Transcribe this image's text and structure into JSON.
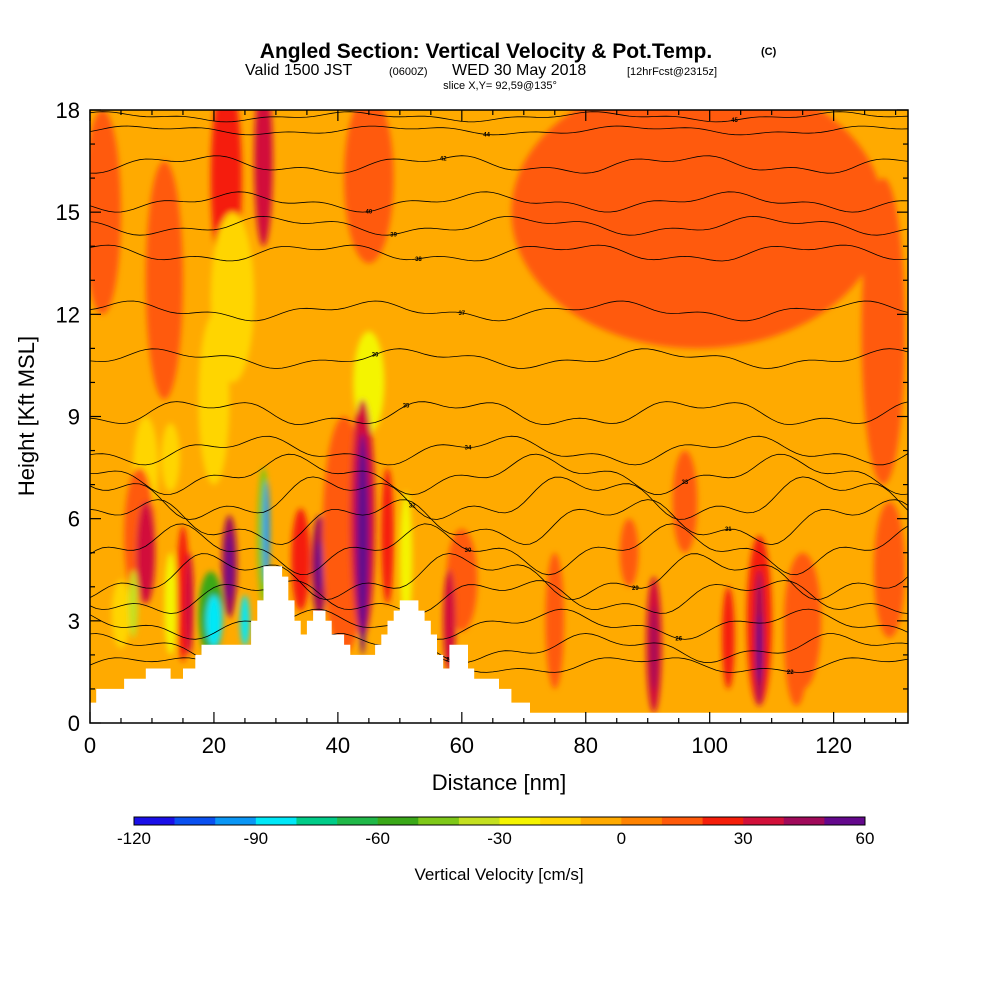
{
  "title": {
    "main": "Angled Section: Vertical Velocity & Pot.Temp.",
    "main_suffix": "(C)",
    "valid_prefix": "Valid 1500 JST",
    "valid_utc": "(0600Z)",
    "valid_date": "WED 30 May 2018",
    "forecast": "[12hrFcst@2315z]",
    "slice": "slice X,Y= 92,59@135°"
  },
  "chart_data": {
    "type": "heatmap",
    "xlabel": "Distance [nm]",
    "ylabel": "Height [Kft MSL]",
    "xlim": [
      0,
      132
    ],
    "ylim": [
      0,
      18
    ],
    "xticks": [
      0,
      20,
      40,
      60,
      80,
      100,
      120
    ],
    "yticks": [
      0,
      3,
      6,
      9,
      12,
      15,
      18
    ],
    "colorbar": {
      "title": "Vertical Velocity [cm/s]",
      "range": [
        -120,
        60
      ],
      "step": 10,
      "tick_values": [
        -120,
        -90,
        -60,
        -30,
        0,
        30,
        60
      ],
      "colors": [
        "#1a0fe8",
        "#0a50f0",
        "#0a96f5",
        "#00e8f8",
        "#00cc88",
        "#20b848",
        "#3aa818",
        "#7ec818",
        "#c4e020",
        "#f4f400",
        "#ffd500",
        "#ffaa00",
        "#ff8300",
        "#ff5a0a",
        "#f51e0a",
        "#d2103a",
        "#a00a5a",
        "#64088c"
      ]
    },
    "background_color": "#ffaa00",
    "terrain": [
      [
        0,
        0.6
      ],
      [
        1,
        0.6
      ],
      [
        1,
        1
      ],
      [
        5.5,
        1
      ],
      [
        5.5,
        1.3
      ],
      [
        9,
        1.3
      ],
      [
        9,
        1.6
      ],
      [
        13,
        1.6
      ],
      [
        13,
        1.3
      ],
      [
        15,
        1.3
      ],
      [
        15,
        1.6
      ],
      [
        17,
        1.6
      ],
      [
        17,
        2
      ],
      [
        18,
        2
      ],
      [
        18,
        2.3
      ],
      [
        26,
        2.3
      ],
      [
        26,
        3
      ],
      [
        27,
        3
      ],
      [
        27,
        3.6
      ],
      [
        28,
        3.6
      ],
      [
        28,
        4.6
      ],
      [
        31,
        4.6
      ],
      [
        31,
        4.3
      ],
      [
        32,
        4.3
      ],
      [
        32,
        3.6
      ],
      [
        33,
        3.6
      ],
      [
        33,
        3
      ],
      [
        34,
        3
      ],
      [
        34,
        2.6
      ],
      [
        35,
        2.6
      ],
      [
        35,
        3
      ],
      [
        36,
        3
      ],
      [
        36,
        3.3
      ],
      [
        38,
        3.3
      ],
      [
        38,
        3
      ],
      [
        39,
        3
      ],
      [
        39,
        2.6
      ],
      [
        41,
        2.6
      ],
      [
        41,
        2.3
      ],
      [
        42,
        2.3
      ],
      [
        42,
        2
      ],
      [
        46,
        2
      ],
      [
        46,
        2.3
      ],
      [
        47,
        2.3
      ],
      [
        47,
        2.6
      ],
      [
        48,
        2.6
      ],
      [
        48,
        3
      ],
      [
        49,
        3
      ],
      [
        49,
        3.3
      ],
      [
        50,
        3.3
      ],
      [
        50,
        3.6
      ],
      [
        53,
        3.6
      ],
      [
        53,
        3.3
      ],
      [
        54,
        3.3
      ],
      [
        54,
        3
      ],
      [
        55,
        3
      ],
      [
        55,
        2.6
      ],
      [
        56,
        2.6
      ],
      [
        56,
        2
      ],
      [
        57,
        2
      ],
      [
        57,
        1.6
      ],
      [
        58,
        1.6
      ],
      [
        58,
        2.3
      ],
      [
        61,
        2.3
      ],
      [
        61,
        1.6
      ],
      [
        62,
        1.6
      ],
      [
        62,
        1.3
      ],
      [
        66,
        1.3
      ],
      [
        66,
        1
      ],
      [
        68,
        1
      ],
      [
        68,
        0.6
      ],
      [
        71,
        0.6
      ],
      [
        71,
        0.3
      ],
      [
        132,
        0.3
      ]
    ],
    "cells": [
      {
        "x": 2,
        "y": 15,
        "w": 6,
        "h": 6,
        "v": 10
      },
      {
        "x": 12,
        "y": 13,
        "w": 6,
        "h": 7,
        "v": 10
      },
      {
        "x": 22,
        "y": 16,
        "w": 5,
        "h": 6,
        "v": 20
      },
      {
        "x": 28,
        "y": 16.5,
        "w": 3,
        "h": 5,
        "v": 30
      },
      {
        "x": 45,
        "y": 16,
        "w": 8,
        "h": 5,
        "v": 10
      },
      {
        "x": 98,
        "y": 15,
        "w": 60,
        "h": 8,
        "v": 10
      },
      {
        "x": 105,
        "y": 14,
        "w": 7,
        "h": 5,
        "v": 10
      },
      {
        "x": 128,
        "y": 11.5,
        "w": 7,
        "h": 9,
        "v": 10
      },
      {
        "x": 23,
        "y": 12.5,
        "w": 7,
        "h": 5,
        "v": -20
      },
      {
        "x": 20,
        "y": 9.5,
        "w": 5,
        "h": 5,
        "v": -20
      },
      {
        "x": 45,
        "y": 10,
        "w": 5,
        "h": 3,
        "v": -30
      },
      {
        "x": 9,
        "y": 7.5,
        "w": 4,
        "h": 3,
        "v": -20
      },
      {
        "x": 13,
        "y": 7.8,
        "w": 3,
        "h": 2,
        "v": -20
      },
      {
        "x": 8,
        "y": 5.5,
        "w": 5,
        "h": 4,
        "v": 10
      },
      {
        "x": 9,
        "y": 5,
        "w": 3,
        "h": 3,
        "v": 30
      },
      {
        "x": 5,
        "y": 3.2,
        "w": 3,
        "h": 2,
        "v": -20
      },
      {
        "x": 7,
        "y": 3.5,
        "w": 1.5,
        "h": 2,
        "v": -40
      },
      {
        "x": 13,
        "y": 3.5,
        "w": 2,
        "h": 3,
        "v": -30
      },
      {
        "x": 15,
        "y": 3.8,
        "w": 2,
        "h": 4,
        "v": 20
      },
      {
        "x": 16,
        "y": 3.5,
        "w": 1.5,
        "h": 3,
        "v": 30
      },
      {
        "x": 19.5,
        "y": 3.2,
        "w": 4,
        "h": 2.5,
        "v": -60
      },
      {
        "x": 20,
        "y": 3,
        "w": 2.5,
        "h": 1.5,
        "v": -90
      },
      {
        "x": 22.5,
        "y": 4.6,
        "w": 2.5,
        "h": 3,
        "v": 40
      },
      {
        "x": 22.5,
        "y": 4.6,
        "w": 1,
        "h": 2,
        "v": 60
      },
      {
        "x": 25,
        "y": 3,
        "w": 1.5,
        "h": 1.5,
        "v": -90
      },
      {
        "x": 28,
        "y": 5.5,
        "w": 2,
        "h": 4,
        "v": -50
      },
      {
        "x": 28.5,
        "y": 5.6,
        "w": 1,
        "h": 3,
        "v": -100
      },
      {
        "x": 34,
        "y": 4.8,
        "w": 3,
        "h": 3,
        "v": 20
      },
      {
        "x": 37,
        "y": 4.6,
        "w": 2.5,
        "h": 3,
        "v": 40
      },
      {
        "x": 37,
        "y": 4.6,
        "w": 1,
        "h": 1.5,
        "v": 60
      },
      {
        "x": 41,
        "y": 5.5,
        "w": 7,
        "h": 7,
        "v": 10
      },
      {
        "x": 44,
        "y": 6,
        "w": 4,
        "h": 7,
        "v": 30
      },
      {
        "x": 44,
        "y": 5.5,
        "w": 2,
        "h": 6,
        "v": 50
      },
      {
        "x": 44,
        "y": 3.5,
        "w": 1,
        "h": 3,
        "v": 60
      },
      {
        "x": 48,
        "y": 5.5,
        "w": 2,
        "h": 4,
        "v": 20
      },
      {
        "x": 51,
        "y": 4.8,
        "w": 2,
        "h": 4,
        "v": -30
      },
      {
        "x": 60,
        "y": 4.2,
        "w": 5,
        "h": 3,
        "v": 10
      },
      {
        "x": 58,
        "y": 3,
        "w": 2,
        "h": 3,
        "v": 30
      },
      {
        "x": 75,
        "y": 3,
        "w": 3,
        "h": 4,
        "v": 10
      },
      {
        "x": 87,
        "y": 5,
        "w": 3,
        "h": 2,
        "v": 10
      },
      {
        "x": 91,
        "y": 2.3,
        "w": 2.5,
        "h": 4,
        "v": 30
      },
      {
        "x": 91,
        "y": 2.2,
        "w": 1,
        "h": 2.5,
        "v": 40
      },
      {
        "x": 96,
        "y": 6.5,
        "w": 4,
        "h": 3,
        "v": 10
      },
      {
        "x": 103,
        "y": 2.5,
        "w": 2,
        "h": 3,
        "v": 20
      },
      {
        "x": 108,
        "y": 3,
        "w": 4,
        "h": 5,
        "v": 20
      },
      {
        "x": 108,
        "y": 2.5,
        "w": 1.5,
        "h": 4,
        "v": 40
      },
      {
        "x": 108,
        "y": 2.2,
        "w": 0.8,
        "h": 2,
        "v": 60
      },
      {
        "x": 115,
        "y": 3,
        "w": 6,
        "h": 4,
        "v": 10
      },
      {
        "x": 114,
        "y": 2.5,
        "w": 4,
        "h": 4,
        "v": 10
      },
      {
        "x": 129,
        "y": 4.5,
        "w": 5,
        "h": 4,
        "v": 10
      }
    ],
    "theta_levels": [
      {
        "value": 22,
        "base": 1.7,
        "amp": 0.2,
        "label_x": 113
      },
      {
        "value": 24,
        "base": 2.2,
        "amp": 0.3,
        "label_x": 58
      },
      {
        "value": 26,
        "base": 2.9,
        "amp": 0.3,
        "label_x": 95
      },
      {
        "value": 28,
        "base": 3.7,
        "amp": 0.4,
        "label_x": 53
      },
      {
        "value": 29,
        "base": 4.3,
        "amp": 0.5,
        "label_x": 88
      },
      {
        "value": 30,
        "base": 5.1,
        "amp": 0.5,
        "label_x": 61
      },
      {
        "value": 31,
        "base": 5.9,
        "amp": 0.5,
        "label_x": 103
      },
      {
        "value": 32,
        "base": 6.6,
        "amp": 0.5,
        "label_x": 52
      },
      {
        "value": 33,
        "base": 7.3,
        "amp": 0.4,
        "label_x": 96
      },
      {
        "value": 34,
        "base": 8,
        "amp": 0.3,
        "label_x": 61
      },
      {
        "value": 35,
        "base": 9.1,
        "amp": 0.3,
        "label_x": 51
      },
      {
        "value": 36,
        "base": 10.7,
        "amp": 0.2,
        "label_x": 46
      },
      {
        "value": 37,
        "base": 12.1,
        "amp": 0.2,
        "label_x": 60
      },
      {
        "value": 38,
        "base": 13.8,
        "amp": 0.2,
        "label_x": 53
      },
      {
        "value": 39,
        "base": 14.6,
        "amp": 0.2,
        "label_x": 49
      },
      {
        "value": 40,
        "base": 15.3,
        "amp": 0.2,
        "label_x": 45
      },
      {
        "value": 42,
        "base": 16.4,
        "amp": 0.2,
        "label_x": 57
      },
      {
        "value": 44,
        "base": 17.4,
        "amp": 0.1,
        "label_x": 64
      },
      {
        "value": 45,
        "base": 17.8,
        "amp": 0.1,
        "label_x": 104
      }
    ]
  }
}
